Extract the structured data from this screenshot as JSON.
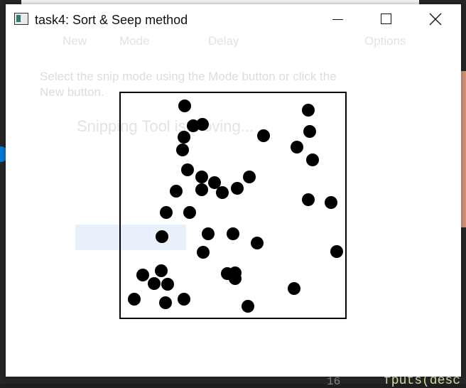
{
  "window": {
    "title": "task4: Sort & Seep method"
  },
  "background": {
    "line_number": "16",
    "code_fragment": "fputs(desc",
    "snip": {
      "toolbar_new": "New",
      "toolbar_mode": "Mode",
      "toolbar_delay": "Delay",
      "toolbar_options": "Options",
      "hint_line1": "Select the snip mode using the Mode button or click the",
      "hint_line2": "New button.",
      "header": "Snipping Tool is moving..."
    }
  },
  "chart_data": {
    "type": "scatter",
    "xlim": [
      0,
      320
    ],
    "ylim": [
      0,
      320
    ],
    "points": [
      [
        92,
        20
      ],
      [
        266,
        26
      ],
      [
        117,
        46
      ],
      [
        104,
        48
      ],
      [
        91,
        64
      ],
      [
        268,
        56
      ],
      [
        203,
        62
      ],
      [
        250,
        78
      ],
      [
        89,
        82
      ],
      [
        272,
        96
      ],
      [
        96,
        110
      ],
      [
        116,
        120
      ],
      [
        183,
        120
      ],
      [
        134,
        128
      ],
      [
        80,
        140
      ],
      [
        116,
        138
      ],
      [
        145,
        142
      ],
      [
        166,
        136
      ],
      [
        266,
        152
      ],
      [
        298,
        156
      ],
      [
        66,
        170
      ],
      [
        99,
        170
      ],
      [
        125,
        200
      ],
      [
        160,
        200
      ],
      [
        60,
        204
      ],
      [
        194,
        213
      ],
      [
        118,
        226
      ],
      [
        306,
        225
      ],
      [
        59,
        252
      ],
      [
        33,
        258
      ],
      [
        152,
        256
      ],
      [
        163,
        255
      ],
      [
        163,
        263
      ],
      [
        49,
        270
      ],
      [
        68,
        271
      ],
      [
        246,
        277
      ],
      [
        21,
        292
      ],
      [
        91,
        292
      ],
      [
        65,
        297
      ],
      [
        181,
        302
      ]
    ]
  }
}
